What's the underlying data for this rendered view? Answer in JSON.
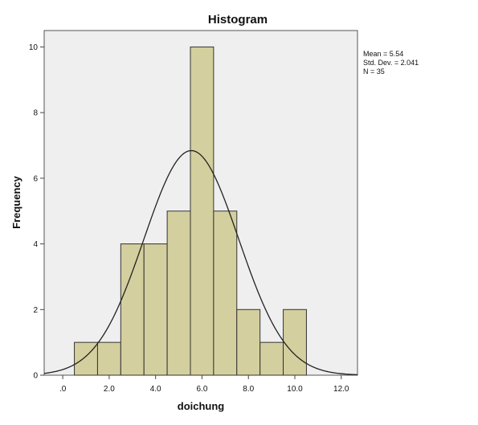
{
  "chart_data": {
    "type": "bar",
    "title": "Histogram",
    "xlabel": "doichung",
    "ylabel": "Frequency",
    "bins": [
      {
        "start": 0.5,
        "end": 1.5,
        "count": 1
      },
      {
        "start": 1.5,
        "end": 2.5,
        "count": 1
      },
      {
        "start": 2.5,
        "end": 3.5,
        "count": 4
      },
      {
        "start": 3.5,
        "end": 4.5,
        "count": 4
      },
      {
        "start": 4.5,
        "end": 5.5,
        "count": 5
      },
      {
        "start": 5.5,
        "end": 6.5,
        "count": 10
      },
      {
        "start": 6.5,
        "end": 7.5,
        "count": 5
      },
      {
        "start": 7.5,
        "end": 8.5,
        "count": 2
      },
      {
        "start": 8.5,
        "end": 9.5,
        "count": 1
      },
      {
        "start": 9.5,
        "end": 10.5,
        "count": 2
      }
    ],
    "xlim": [
      -0.8,
      12.7
    ],
    "ylim": [
      0,
      10.5
    ],
    "x_ticks": [
      0,
      2,
      4,
      6,
      8,
      10,
      12
    ],
    "x_tick_labels": [
      ".0",
      "2.0",
      "4.0",
      "6.0",
      "8.0",
      "10.0",
      "12.0"
    ],
    "y_ticks": [
      0,
      2,
      4,
      6,
      8,
      10
    ],
    "y_tick_labels": [
      "0",
      "2",
      "4",
      "6",
      "8",
      "10"
    ],
    "normal_curve": {
      "mean": 5.54,
      "std_dev": 2.041,
      "n": 35,
      "bin_width": 1
    },
    "stats": [
      "Mean = 5.54",
      "Std. Dev. = 2.041",
      "N = 35"
    ],
    "grid": false,
    "colors": {
      "bar_fill": "#d4cf9e",
      "bar_stroke": "#333333",
      "plot_background": "#efefef",
      "curve": "#222222"
    }
  }
}
